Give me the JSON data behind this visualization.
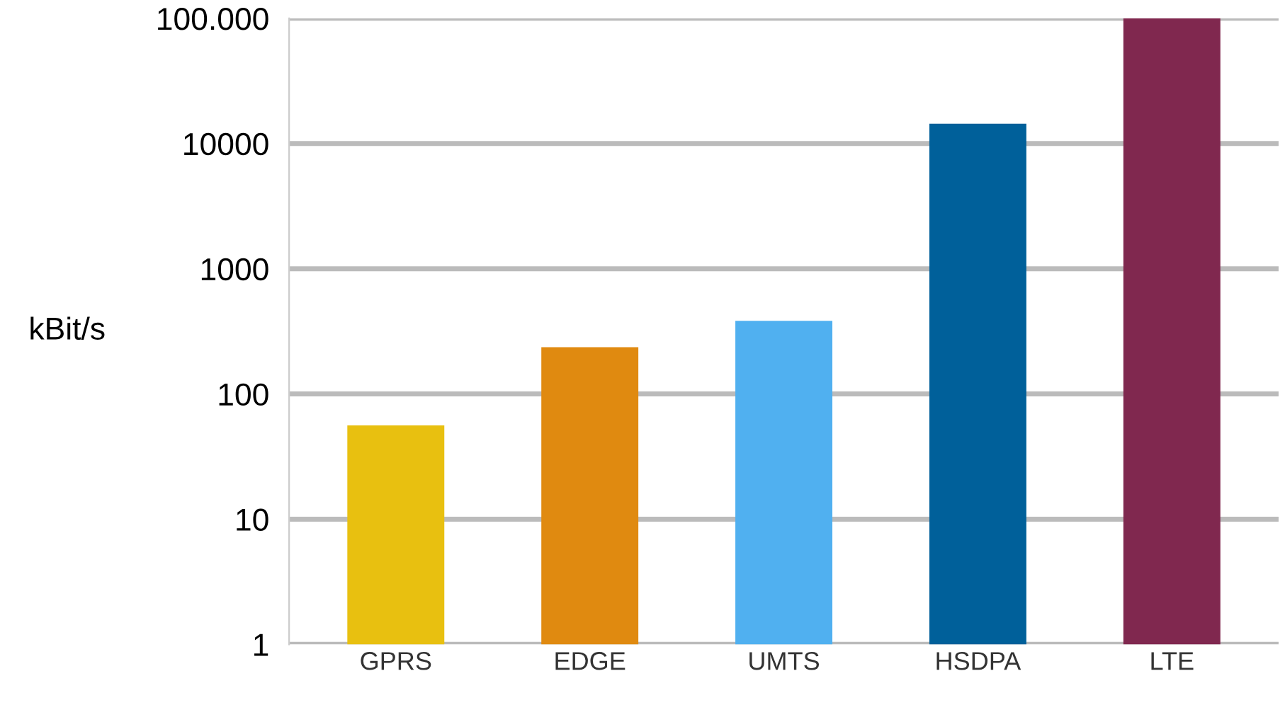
{
  "chart_data": {
    "type": "bar",
    "ylabel": "kBit/s",
    "categories": [
      "GPRS",
      "EDGE",
      "UMTS",
      "HSDPA",
      "LTE"
    ],
    "values": [
      56,
      236,
      384,
      14400,
      100000
    ],
    "colors": [
      "#e8c010",
      "#e08a10",
      "#50b0f0",
      "#00609a",
      "#80284f"
    ],
    "log": "y",
    "ylim": [
      1,
      100000
    ],
    "yticks": [
      1,
      10,
      100,
      1000,
      10000,
      {
        "value": 100000,
        "label": "100.000"
      }
    ],
    "grid": "y"
  }
}
